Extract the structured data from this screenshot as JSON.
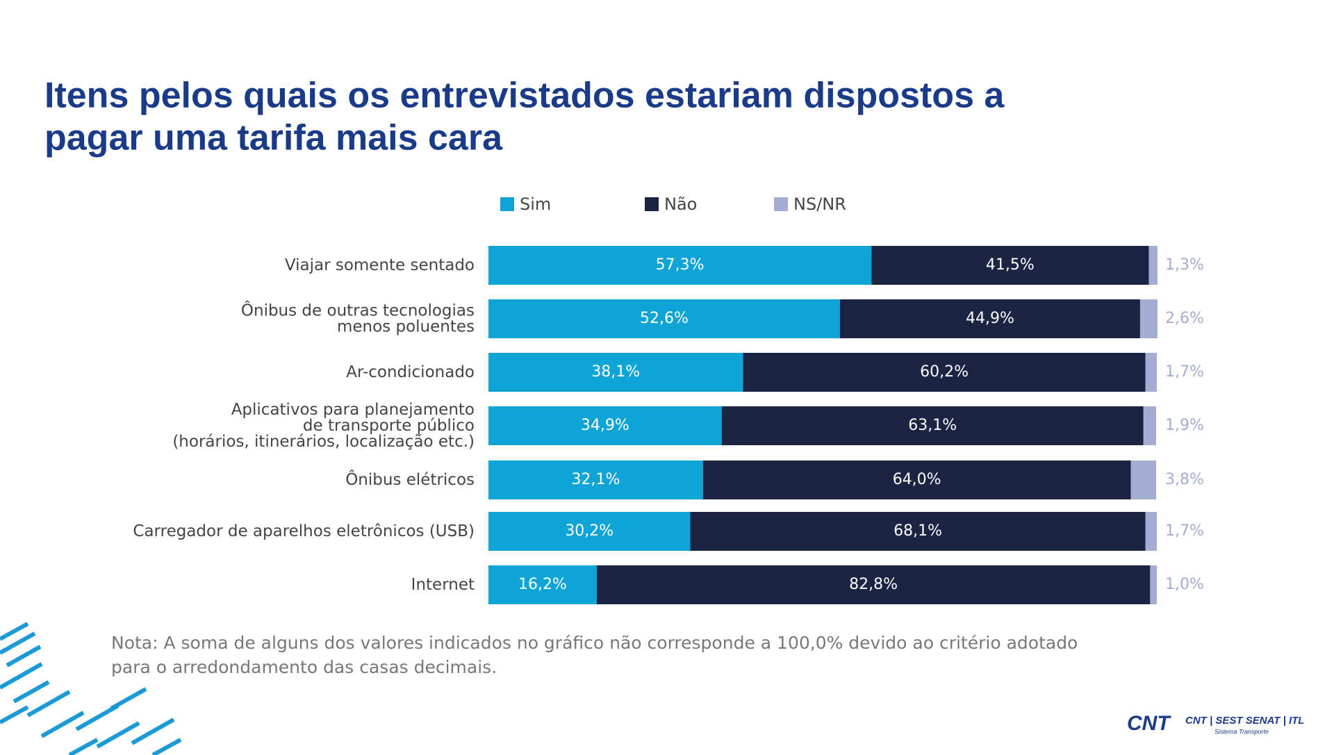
{
  "chart_data": {
    "type": "stacked-bar-horizontal",
    "title": [
      "Itens pelos quais os entrevistados estariam dispostos a",
      "pagar uma tarifa mais cara"
    ],
    "categories": [
      "Viajar somente sentado",
      "Ônibus de outras tecnologias\nmenos poluentes",
      "Ar-condicionado",
      "Aplicativos para planejamento\nde transporte público\n(horários, itinerários, localização etc.)",
      "Ônibus elétricos",
      "Carregador de aparelhos eletrônicos (USB)",
      "Internet"
    ],
    "series": [
      {
        "name": "Sim",
        "color": "#0ea5d6",
        "values": [
          57.3,
          52.6,
          38.1,
          34.9,
          32.1,
          30.2,
          16.2
        ],
        "value_labels": [
          "57,3%",
          "52,6%",
          "38,1%",
          "34,9%",
          "32,1%",
          "30,2%",
          "16,2%"
        ]
      },
      {
        "name": "Não",
        "color": "#1c2444",
        "values": [
          41.5,
          44.9,
          60.2,
          63.1,
          64.0,
          68.1,
          82.8
        ],
        "value_labels": [
          "41,5%",
          "44,9%",
          "60,2%",
          "63,1%",
          "64,0%",
          "68,1%",
          "82,8%"
        ]
      },
      {
        "name": "NS/NR",
        "color": "#a3acd1",
        "values": [
          1.3,
          2.6,
          1.7,
          1.9,
          3.8,
          1.7,
          1.0
        ],
        "value_labels": [
          "1,3%",
          "2,6%",
          "1,7%",
          "1,9%",
          "3,8%",
          "1,7%",
          "1,0%"
        ]
      }
    ],
    "note": [
      "Nota: A soma de alguns dos valores indicados no gráfico não corresponde a 100,0% devido ao critério adotado",
      "para o arredondamento das casas decimais."
    ]
  },
  "footer": {
    "logo": "CNT",
    "brands": "CNT | SEST SENAT | ITL",
    "tagline": "Sistema Transporte"
  }
}
